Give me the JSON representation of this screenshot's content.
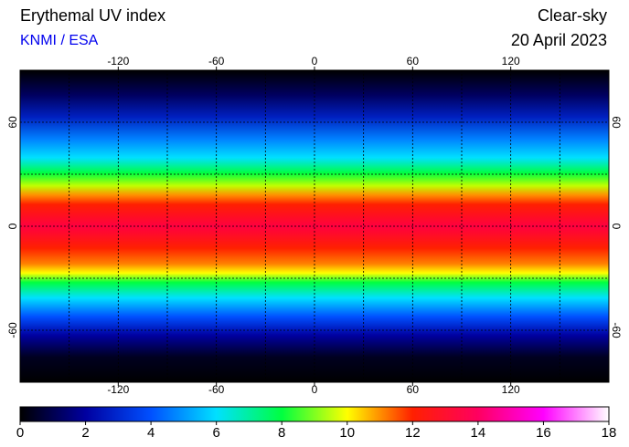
{
  "header": {
    "title": "Erythemal UV index",
    "source": "KNMI / ESA",
    "condition": "Clear-sky",
    "date": "20 April 2023"
  },
  "map": {
    "xlim": [
      -180,
      180
    ],
    "ylim": [
      -90,
      90
    ],
    "xticks": [
      -120,
      -60,
      0,
      60,
      120
    ],
    "yticks": [
      -60,
      0,
      60
    ],
    "grid": true
  },
  "colorbar": {
    "range": [
      0,
      18
    ],
    "ticks": [
      0,
      2,
      4,
      6,
      8,
      10,
      12,
      14,
      16,
      18
    ],
    "colors": [
      "#000000",
      "#0000a0",
      "#0050ff",
      "#00e0ff",
      "#00ff40",
      "#ffff00",
      "#ff2000",
      "#ff0060",
      "#ff00ff",
      "#ffffff"
    ]
  }
}
